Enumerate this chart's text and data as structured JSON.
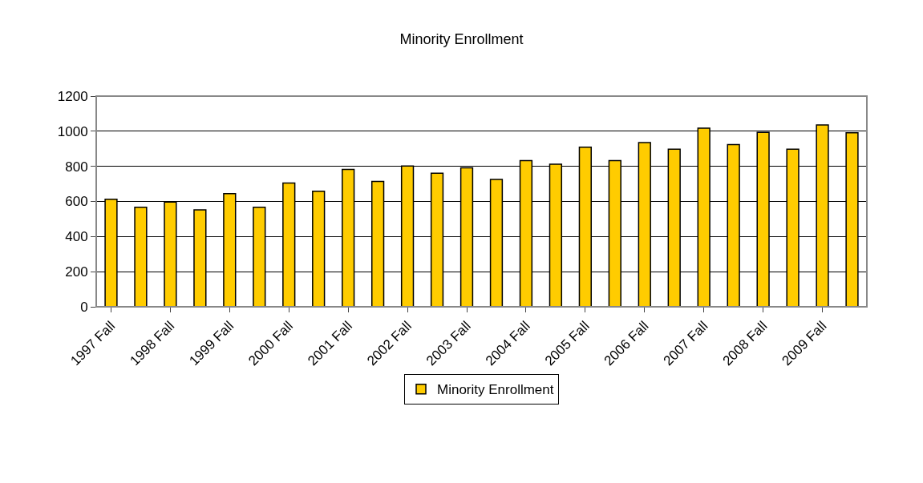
{
  "chart_data": {
    "type": "bar",
    "title": "Minority Enrollment",
    "categories": [
      "1997 Fall",
      null,
      "1998 Fall",
      null,
      "1999 Fall",
      null,
      "2000 Fall",
      null,
      "2001 Fall",
      null,
      "2002 Fall",
      null,
      "2003 Fall",
      null,
      "2004 Fall",
      null,
      "2005 Fall",
      null,
      "2006 Fall",
      null,
      "2007 Fall",
      null,
      "2008 Fall",
      null,
      "2009 Fall",
      null
    ],
    "series": [
      {
        "name": "Minority Enrollment",
        "color": "#ffcc00",
        "values": [
          612,
          567,
          597,
          552,
          644,
          567,
          705,
          658,
          783,
          714,
          802,
          761,
          792,
          725,
          833,
          812,
          909,
          833,
          935,
          898,
          1017,
          924,
          994,
          898,
          1036,
          991
        ]
      }
    ],
    "ylim": [
      0,
      1200
    ],
    "yticks": [
      0,
      200,
      400,
      600,
      800,
      1000,
      1200
    ],
    "grid": "y",
    "legend": "bottom"
  }
}
